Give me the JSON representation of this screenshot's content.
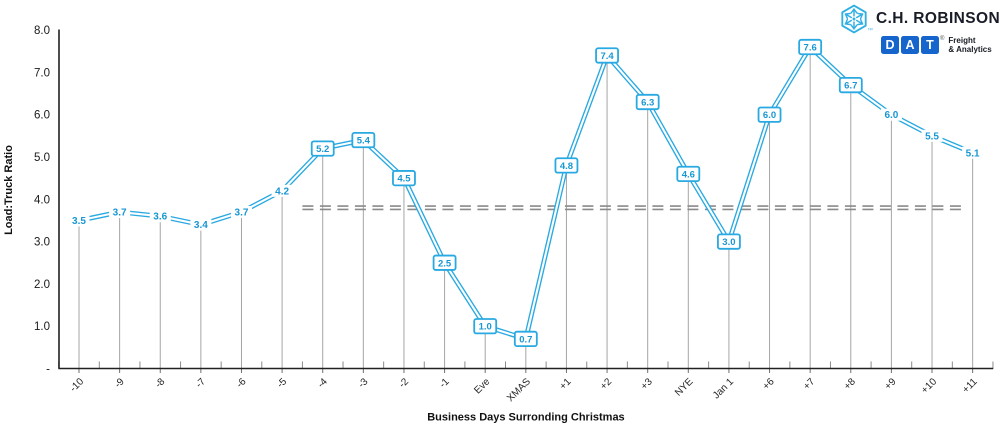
{
  "branding": {
    "chrobinson": {
      "name": "C.H. ROBINSON",
      "trademark": "™"
    },
    "dat": {
      "letters": [
        "D",
        "A",
        "T"
      ],
      "registered": "®",
      "tagline_line1": "Freight",
      "tagline_line2": "& Analytics"
    },
    "colors": {
      "chr_cyan": "#2fafe3",
      "chr_navy": "#181c26",
      "dat_blue": "#1565cc"
    }
  },
  "chart_data": {
    "type": "line",
    "title": "",
    "xlabel": "Business Days Surronding Christmas",
    "ylabel": "Load:Truck Ratio",
    "categories": [
      "-10",
      "-9",
      "-8",
      "-7",
      "-6",
      "-5",
      "-4",
      "-3",
      "-2",
      "-1",
      "Eve",
      "XMAS",
      "+1",
      "+2",
      "+3",
      "NYE",
      "Jan 1",
      "+6",
      "+7",
      "+8",
      "+9",
      "+10",
      "+11"
    ],
    "values": [
      3.5,
      3.7,
      3.6,
      3.4,
      3.7,
      4.2,
      5.2,
      5.4,
      4.5,
      2.5,
      1.0,
      0.7,
      4.8,
      7.4,
      6.3,
      4.6,
      3.0,
      6.0,
      7.6,
      6.7,
      6.0,
      5.5,
      5.1
    ],
    "labels": [
      "3.5",
      "3.7",
      "3.6",
      "3.4",
      "3.7",
      "4.2",
      "5.2",
      "5.4",
      "4.5",
      "2.5",
      "1.0",
      "0.7",
      "4.8",
      "7.4",
      "6.3",
      "4.6",
      "3.0",
      "6.0",
      "7.6",
      "6.7",
      "6.0",
      "5.5",
      "5.1"
    ],
    "boxed": [
      false,
      false,
      false,
      false,
      false,
      false,
      true,
      true,
      true,
      true,
      true,
      true,
      true,
      true,
      true,
      true,
      true,
      true,
      true,
      true,
      false,
      false,
      false
    ],
    "ylim": [
      0,
      8
    ],
    "y_ticks": [
      {
        "v": 8,
        "label": "8.0"
      },
      {
        "v": 7,
        "label": "7.0"
      },
      {
        "v": 6,
        "label": "6.0"
      },
      {
        "v": 5,
        "label": "5.0"
      },
      {
        "v": 4,
        "label": "4.0"
      },
      {
        "v": 3,
        "label": "3.0"
      },
      {
        "v": 2,
        "label": "2.0"
      },
      {
        "v": 1,
        "label": "1.0"
      },
      {
        "v": 0,
        "label": "-"
      }
    ],
    "reference_line": {
      "value": 3.8,
      "from_index": 5.5,
      "to_index": 21.8,
      "style": "double-dash"
    },
    "grid": false,
    "legend": "none",
    "drop_lines": true,
    "colors": {
      "line": "#29a9e1",
      "label_text": "#1797d3",
      "label_box_border": "#29a9e1",
      "drop_line": "#a5a5a5",
      "boundary_tick": "#8c8c8c",
      "center_tick": "#6f6f6f",
      "axis": "#212121",
      "x_tick_text": "#262626",
      "y_tick_text": "#1a1a1a",
      "axis_title": "#111111",
      "ref_line": "#8a8a8a"
    }
  }
}
